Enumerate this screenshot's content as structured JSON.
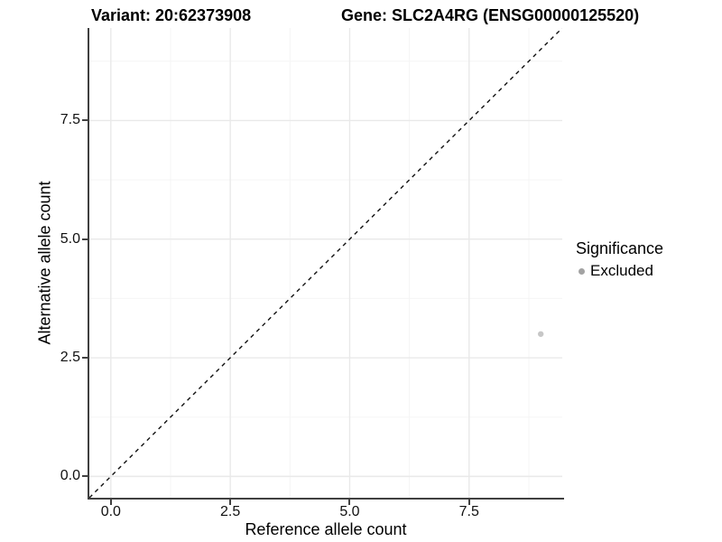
{
  "titles": {
    "variant": "Variant: 20:62373908",
    "gene": "Gene: SLC2A4RG (ENSG00000125520)"
  },
  "chart_data": {
    "type": "scatter",
    "title": "",
    "xlabel": "Reference allele count",
    "ylabel": "Alternative allele count",
    "xlim": [
      0,
      9
    ],
    "ylim": [
      0,
      9
    ],
    "grid": "major+minor",
    "legend_position": "right",
    "major_ticks": [
      0,
      2.5,
      5,
      7.5
    ],
    "minor_ticks": [
      1.25,
      3.75,
      6.25,
      8.75
    ],
    "x_tick_labels": [
      "0.0",
      "2.5",
      "5.0",
      "7.5"
    ],
    "y_tick_labels": [
      "0.0",
      "2.5",
      "5.0",
      "7.5"
    ],
    "points": [
      {
        "x": 9,
        "y": 3,
        "significance": "Excluded"
      }
    ],
    "identity_line": {
      "slope": 1,
      "intercept": 0,
      "style": "dashed"
    }
  },
  "legend": {
    "title": "Significance",
    "items": [
      {
        "label": "Excluded",
        "marker": "circle",
        "color": "#a3a3a3"
      }
    ]
  },
  "colors": {
    "background": "#ffffff",
    "point": "#c7c7c7",
    "legend_marker": "#a3a3a3",
    "axis_line": "#404040",
    "grid_major": "#e9e9e9",
    "grid_minor": "#f5f5f5",
    "dashed_line": "#111111",
    "text": "#000000"
  }
}
